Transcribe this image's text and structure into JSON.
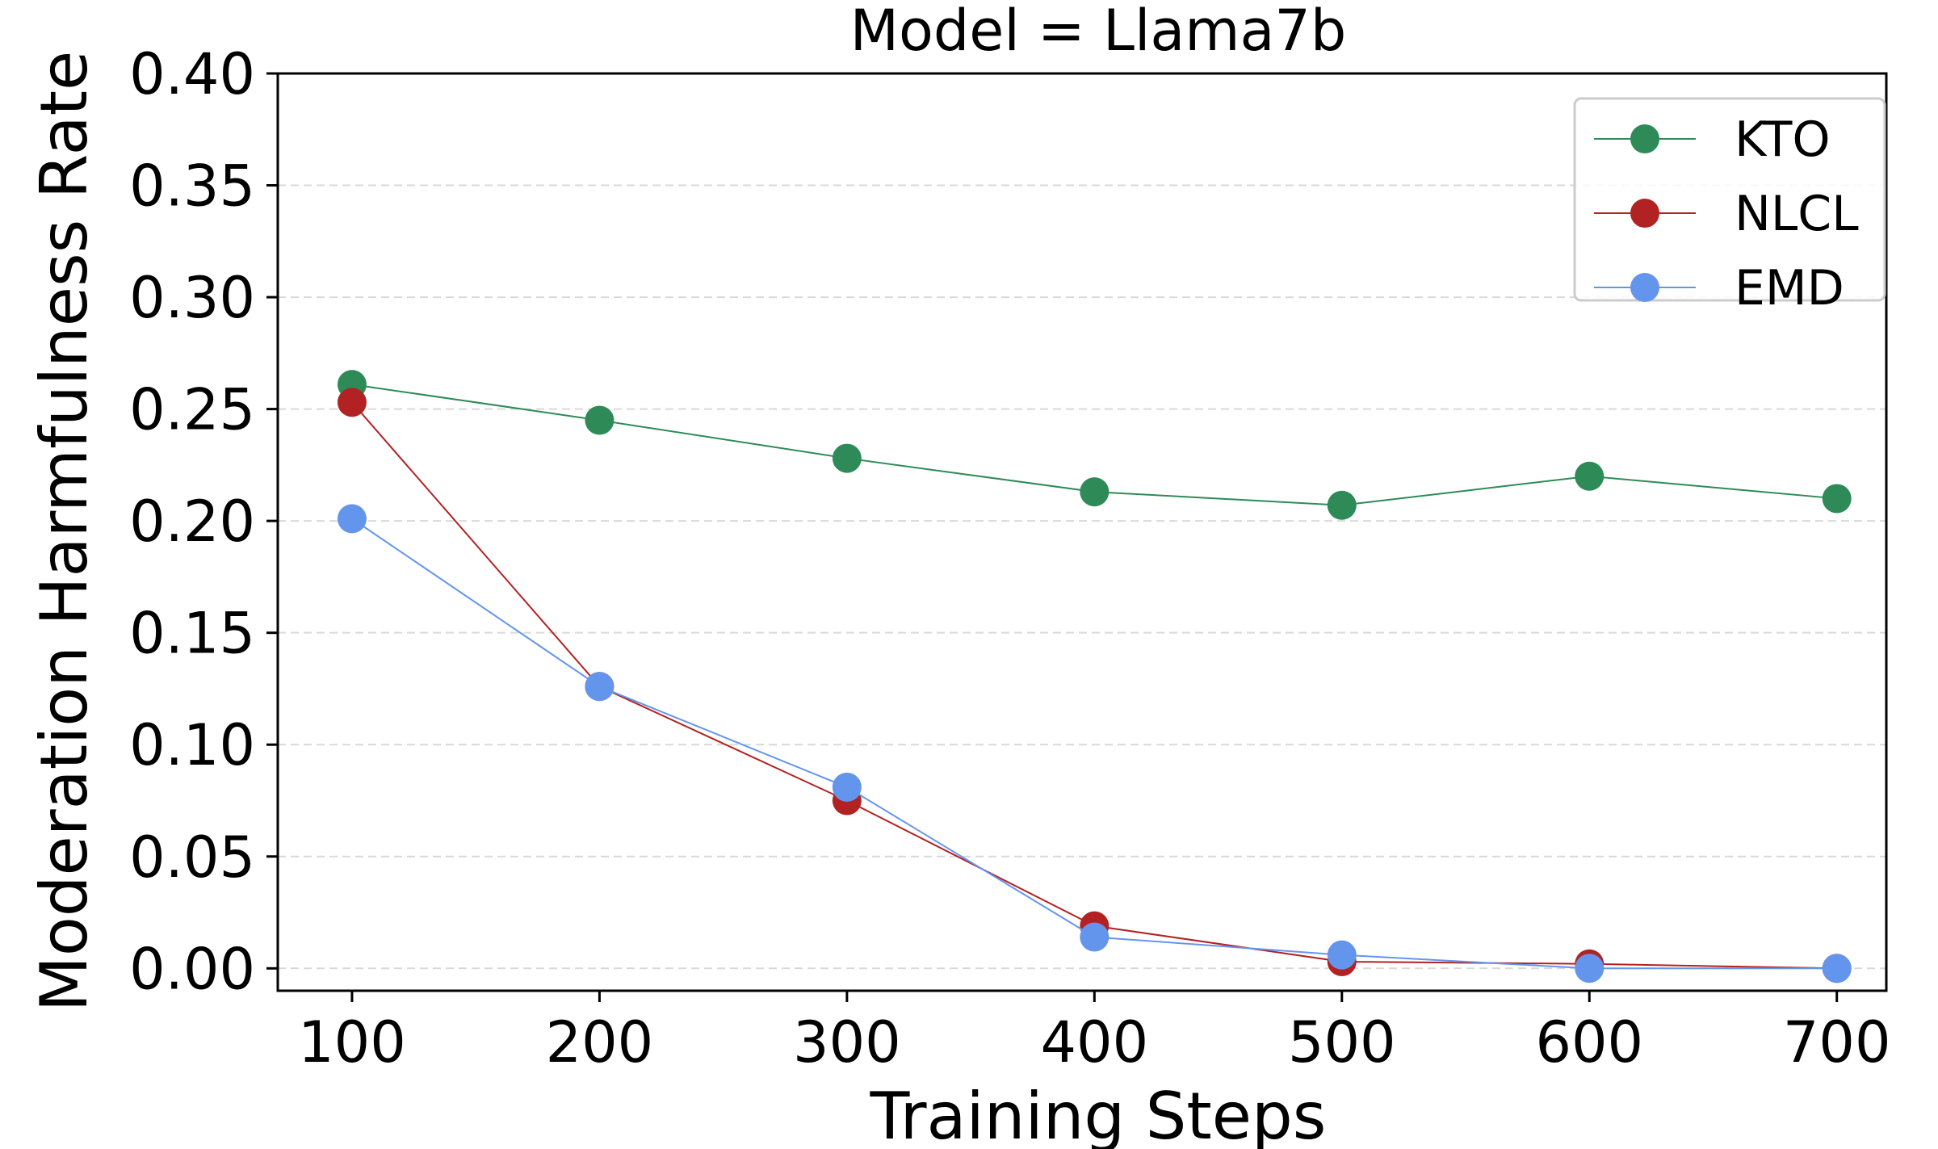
{
  "chart_data": {
    "type": "line",
    "title": "Model = Llama7b",
    "xlabel": "Training Steps",
    "ylabel": "Moderation Harmfulness Rate",
    "x": [
      100,
      200,
      300,
      400,
      500,
      600,
      700
    ],
    "xticks": [
      "100",
      "200",
      "300",
      "400",
      "500",
      "600",
      "700"
    ],
    "yticks": [
      "0.00",
      "0.05",
      "0.10",
      "0.15",
      "0.20",
      "0.25",
      "0.30",
      "0.35",
      "0.40"
    ],
    "ytick_values": [
      0.0,
      0.05,
      0.1,
      0.15,
      0.2,
      0.25,
      0.3,
      0.35,
      0.4
    ],
    "xlim": [
      70,
      720
    ],
    "ylim": [
      -0.01,
      0.4
    ],
    "grid": "horizontal dashed",
    "legend_position": "top-right",
    "series": [
      {
        "name": "KTO",
        "color": "#2e8b57",
        "values": [
          0.261,
          0.245,
          0.228,
          0.213,
          0.207,
          0.22,
          0.21
        ]
      },
      {
        "name": "NLCL",
        "color": "#b22222",
        "values": [
          0.253,
          0.126,
          0.075,
          0.019,
          0.003,
          0.002,
          0.0
        ]
      },
      {
        "name": "EMD",
        "color": "#6495ed",
        "values": [
          0.201,
          0.126,
          0.081,
          0.014,
          0.006,
          0.0,
          0.0
        ]
      }
    ]
  }
}
